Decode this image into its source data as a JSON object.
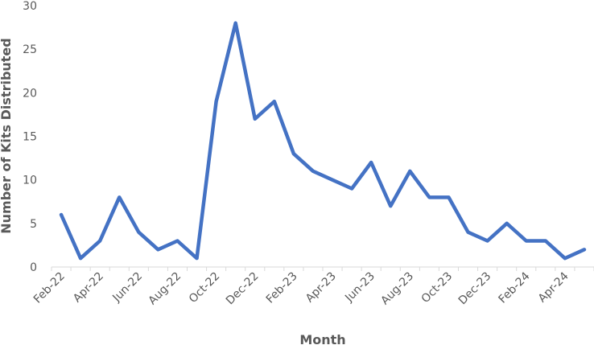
{
  "chart_data": {
    "type": "line",
    "title": "",
    "xlabel": "Month",
    "ylabel": "Number of Kits Distributed",
    "ylim": [
      0,
      30
    ],
    "yticks": [
      0,
      5,
      10,
      15,
      20,
      25,
      30
    ],
    "grid": false,
    "x": [
      "Feb-22",
      "Mar-22",
      "Apr-22",
      "May-22",
      "Jun-22",
      "Jul-22",
      "Aug-22",
      "Sep-22",
      "Oct-22",
      "Nov-22",
      "Dec-22",
      "Jan-23",
      "Feb-23",
      "Mar-23",
      "Apr-23",
      "May-23",
      "Jun-23",
      "Jul-23",
      "Aug-23",
      "Sep-23",
      "Oct-23",
      "Nov-23",
      "Dec-23",
      "Jan-24",
      "Feb-24",
      "Mar-24",
      "Apr-24",
      "May-24"
    ],
    "x_tick_labels": [
      "Feb-22",
      "Apr-22",
      "Jun-22",
      "Aug-22",
      "Oct-22",
      "Dec-22",
      "Feb-23",
      "Apr-23",
      "Jun-23",
      "Aug-23",
      "Oct-23",
      "Dec-23",
      "Feb-24",
      "Apr-24"
    ],
    "series": [
      {
        "color": "#4472C4",
        "values": [
          6,
          1,
          3,
          8,
          4,
          2,
          3,
          1,
          19,
          28,
          17,
          19,
          13,
          11,
          10,
          9,
          12,
          7,
          11,
          8,
          8,
          4,
          3,
          5,
          3,
          3,
          1,
          2
        ]
      }
    ]
  }
}
